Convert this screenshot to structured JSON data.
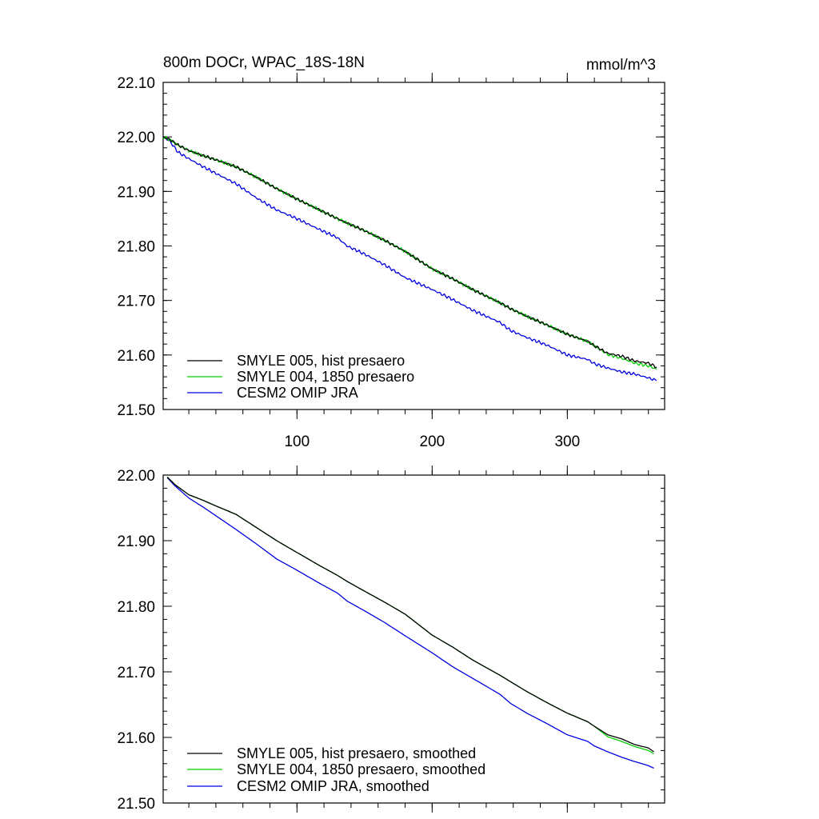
{
  "colors": {
    "smyle005": "#000000",
    "smyle004": "#00d000",
    "omip": "#0000e0"
  },
  "chart_data": [
    {
      "type": "line",
      "title_left": "800m DOCr, WPAC_18S-18N",
      "title_right": "mmol/m^3",
      "xlim": [
        1,
        372
      ],
      "ylim": [
        21.5,
        22.1
      ],
      "x_ticks": [
        100,
        200,
        300
      ],
      "x_tick_labels": [
        "100",
        "200",
        "300"
      ],
      "y_ticks": [
        21.5,
        21.6,
        21.7,
        21.8,
        21.9,
        22.0,
        22.1
      ],
      "y_tick_labels": [
        "21.50",
        "21.60",
        "21.70",
        "21.80",
        "21.90",
        "22.00",
        "22.10"
      ],
      "legend_position": "bottom-left",
      "series": [
        {
          "name": "SMYLE 005, hist presaero",
          "color_key": "smyle005",
          "x": [
            1,
            6,
            12,
            20,
            30,
            40,
            55,
            70,
            85,
            100,
            115,
            130,
            137,
            150,
            165,
            180,
            200,
            215,
            230,
            250,
            258,
            270,
            285,
            300,
            315,
            320,
            330,
            340,
            350,
            360,
            366
          ],
          "y": [
            22.0,
            21.995,
            21.985,
            21.975,
            21.966,
            21.958,
            21.945,
            21.926,
            21.905,
            21.886,
            21.868,
            21.85,
            21.842,
            21.828,
            21.81,
            21.79,
            21.758,
            21.74,
            21.72,
            21.696,
            21.685,
            21.671,
            21.655,
            21.638,
            21.625,
            21.617,
            21.603,
            21.598,
            21.589,
            21.585,
            21.578
          ]
        },
        {
          "name": "SMYLE 004, 1850 presaero",
          "color_key": "smyle004",
          "x": [
            1,
            6,
            12,
            20,
            30,
            40,
            55,
            70,
            85,
            100,
            115,
            130,
            137,
            150,
            165,
            180,
            200,
            215,
            230,
            250,
            258,
            270,
            285,
            300,
            315,
            320,
            330,
            340,
            350,
            360,
            366
          ],
          "y": [
            22.0,
            21.995,
            21.985,
            21.975,
            21.966,
            21.958,
            21.945,
            21.926,
            21.905,
            21.886,
            21.868,
            21.85,
            21.842,
            21.828,
            21.81,
            21.79,
            21.758,
            21.74,
            21.72,
            21.696,
            21.685,
            21.671,
            21.655,
            21.638,
            21.625,
            21.617,
            21.601,
            21.594,
            21.585,
            21.58,
            21.574
          ]
        },
        {
          "name": "CESM2 OMIP JRA",
          "color_key": "omip",
          "x": [
            1,
            6,
            12,
            20,
            30,
            40,
            55,
            70,
            85,
            100,
            115,
            130,
            137,
            150,
            165,
            180,
            200,
            215,
            230,
            250,
            258,
            270,
            285,
            300,
            315,
            320,
            330,
            340,
            350,
            360,
            366
          ],
          "y": [
            22.0,
            21.992,
            21.972,
            21.96,
            21.946,
            21.933,
            21.914,
            21.888,
            21.866,
            21.85,
            21.832,
            21.815,
            21.8,
            21.785,
            21.765,
            21.742,
            21.72,
            21.702,
            21.682,
            21.66,
            21.645,
            21.632,
            21.618,
            21.6,
            21.592,
            21.584,
            21.576,
            21.569,
            21.565,
            21.558,
            21.553
          ]
        }
      ]
    },
    {
      "type": "line",
      "xlim": [
        1,
        372
      ],
      "ylim": [
        21.5,
        22.0
      ],
      "x_ticks": [
        100,
        200,
        300
      ],
      "y_ticks": [
        21.5,
        21.6,
        21.7,
        21.8,
        21.9,
        22.0
      ],
      "y_tick_labels": [
        "21.50",
        "21.60",
        "21.70",
        "21.80",
        "21.90",
        "22.00"
      ],
      "legend_position": "bottom-left",
      "series": [
        {
          "name": "SMYLE 005, hist presaero, smoothed",
          "color_key": "smyle005",
          "x": [
            4,
            10,
            20,
            30,
            40,
            55,
            70,
            85,
            100,
            115,
            130,
            137,
            150,
            165,
            180,
            200,
            215,
            230,
            250,
            258,
            270,
            285,
            300,
            315,
            320,
            330,
            340,
            350,
            360,
            364
          ],
          "y": [
            21.997,
            21.985,
            21.97,
            21.962,
            21.953,
            21.94,
            21.92,
            21.9,
            21.882,
            21.864,
            21.847,
            21.838,
            21.823,
            21.806,
            21.788,
            21.756,
            21.738,
            21.718,
            21.695,
            21.685,
            21.67,
            21.653,
            21.637,
            21.624,
            21.617,
            21.604,
            21.598,
            21.589,
            21.584,
            21.578
          ]
        },
        {
          "name": "SMYLE 004, 1850 presaero, smoothed",
          "color_key": "smyle004",
          "x": [
            4,
            10,
            20,
            30,
            40,
            55,
            70,
            85,
            100,
            115,
            130,
            137,
            150,
            165,
            180,
            200,
            215,
            230,
            250,
            258,
            270,
            285,
            300,
            315,
            320,
            330,
            340,
            350,
            360,
            364
          ],
          "y": [
            21.997,
            21.985,
            21.97,
            21.962,
            21.953,
            21.94,
            21.92,
            21.9,
            21.882,
            21.864,
            21.847,
            21.838,
            21.823,
            21.806,
            21.788,
            21.756,
            21.738,
            21.718,
            21.695,
            21.685,
            21.67,
            21.653,
            21.637,
            21.624,
            21.617,
            21.601,
            21.594,
            21.586,
            21.58,
            21.575
          ]
        },
        {
          "name": "CESM2 OMIP JRA, smoothed",
          "color_key": "omip",
          "x": [
            4,
            10,
            20,
            30,
            40,
            55,
            70,
            85,
            100,
            115,
            130,
            137,
            150,
            165,
            180,
            200,
            215,
            230,
            250,
            258,
            270,
            285,
            300,
            315,
            320,
            330,
            340,
            350,
            360,
            364
          ],
          "y": [
            21.996,
            21.983,
            21.965,
            21.952,
            21.938,
            21.917,
            21.895,
            21.872,
            21.855,
            21.837,
            21.82,
            21.808,
            21.793,
            21.775,
            21.755,
            21.729,
            21.708,
            21.69,
            21.666,
            21.652,
            21.637,
            21.621,
            21.604,
            21.594,
            21.587,
            21.578,
            21.57,
            21.563,
            21.557,
            21.553
          ]
        }
      ]
    }
  ]
}
